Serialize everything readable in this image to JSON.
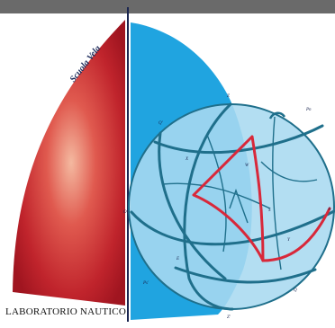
{
  "logo": {
    "brand_text": "Scuola Vela",
    "footer_text": "LABORATORIO NAUTICO"
  },
  "sphere": {
    "point_labels": {
      "z": "Z",
      "q": "Q'",
      "pn": "Pn",
      "x": "X",
      "w": "W",
      "o": "O",
      "a": "A",
      "e": "E",
      "q2": "Q",
      "ps": "Ps'",
      "z2": "Z'",
      "y": "Y",
      "s": "S"
    }
  },
  "colors": {
    "sail_red": "#c0242c",
    "sail_highlight": "#f4b9a0",
    "panel_blue": "#20a4e0",
    "sphere_fill": "#a9d9f0",
    "great_circle": "#1f6f8b",
    "triangle_red": "#d8283a",
    "mast": "#1a2550"
  }
}
